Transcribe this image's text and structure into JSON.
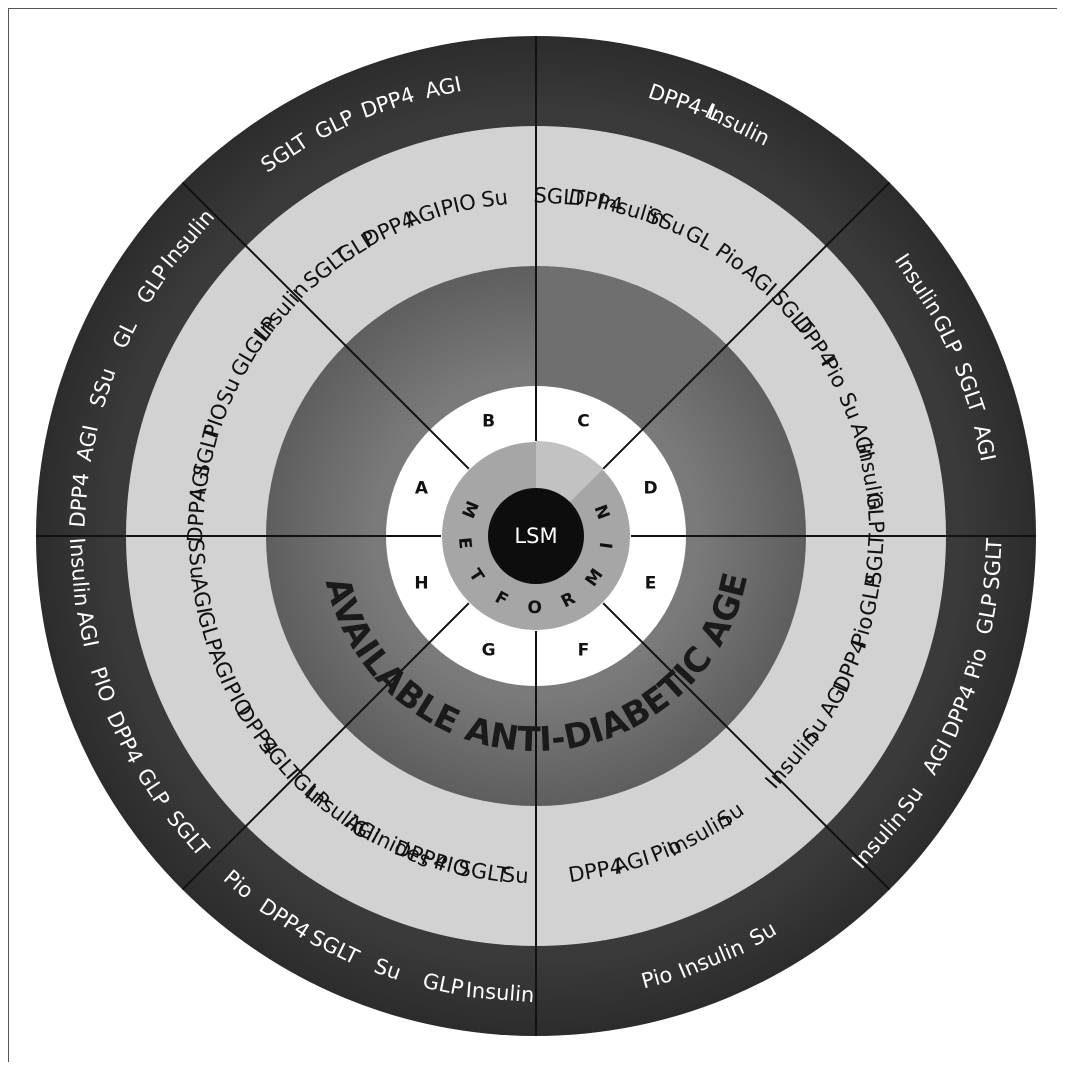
{
  "center": {
    "label": "LSM"
  },
  "metformin_label": "METFORMIN",
  "agents_label": "ALL AVAILABLE ANTI-DIABETIC AGENTS",
  "sectors": [
    {
      "letter": "A",
      "inner": [
        "DPP4",
        "AGI",
        "SGLT",
        "PIO",
        "Su",
        "GL",
        "GLP",
        "Insulin"
      ],
      "outer": [
        "DPP4",
        "AGI",
        "SSu",
        "GL",
        "GLP",
        "Insulin"
      ]
    },
    {
      "letter": "B",
      "inner": [
        "SGLT",
        "GLP",
        "DPP4",
        "AGI",
        "PIO",
        "Su"
      ],
      "outer": [
        "SGLT",
        "GLP",
        "DPP4",
        "AGI"
      ]
    },
    {
      "letter": "C",
      "inner": [
        "SGLT",
        "DPP4",
        "Insulin",
        "SSu",
        "GL",
        "Pio",
        "AGI"
      ],
      "outer": [
        "DPP4-L",
        "Insulin"
      ]
    },
    {
      "letter": "D",
      "inner": [
        "SGLT",
        "DPP4",
        "Pio",
        "Su",
        "AGI",
        "Insulin",
        "GLP"
      ],
      "outer": [
        "Insulin",
        "GLP",
        "SGLT",
        "AGI"
      ]
    },
    {
      "letter": "E",
      "inner": [
        "SGLT",
        "GLP",
        "Pio",
        "DPP4",
        "AGI",
        "Su",
        "Insulin"
      ],
      "outer": [
        "SGLT",
        "GLP",
        "Pio",
        "DPP4",
        "AGI",
        "Su",
        "Insulin"
      ]
    },
    {
      "letter": "F",
      "inner": [
        "Su",
        "Insulin",
        "Pio",
        "AGI",
        "DPP4"
      ],
      "outer": [
        "Su",
        "Insulin",
        "Pio"
      ]
    },
    {
      "letter": "G",
      "inner": [
        "Su",
        "SGLT",
        "PIO",
        "DPP4",
        "Glinides",
        "AGI",
        "Insulin",
        "GLP"
      ],
      "outer": [
        "Insulin",
        "GLP",
        "Su",
        "SGLT",
        "DPP4",
        "Pio"
      ]
    },
    {
      "letter": "H",
      "inner": [
        "SGLT",
        "DPP4",
        "PIO",
        "AGI",
        "GLP",
        "AGI",
        "SSu"
      ],
      "outer": [
        "SGLT",
        "GLP",
        "DPP4",
        "PIO",
        "AGI",
        "Insulin"
      ]
    }
  ]
}
